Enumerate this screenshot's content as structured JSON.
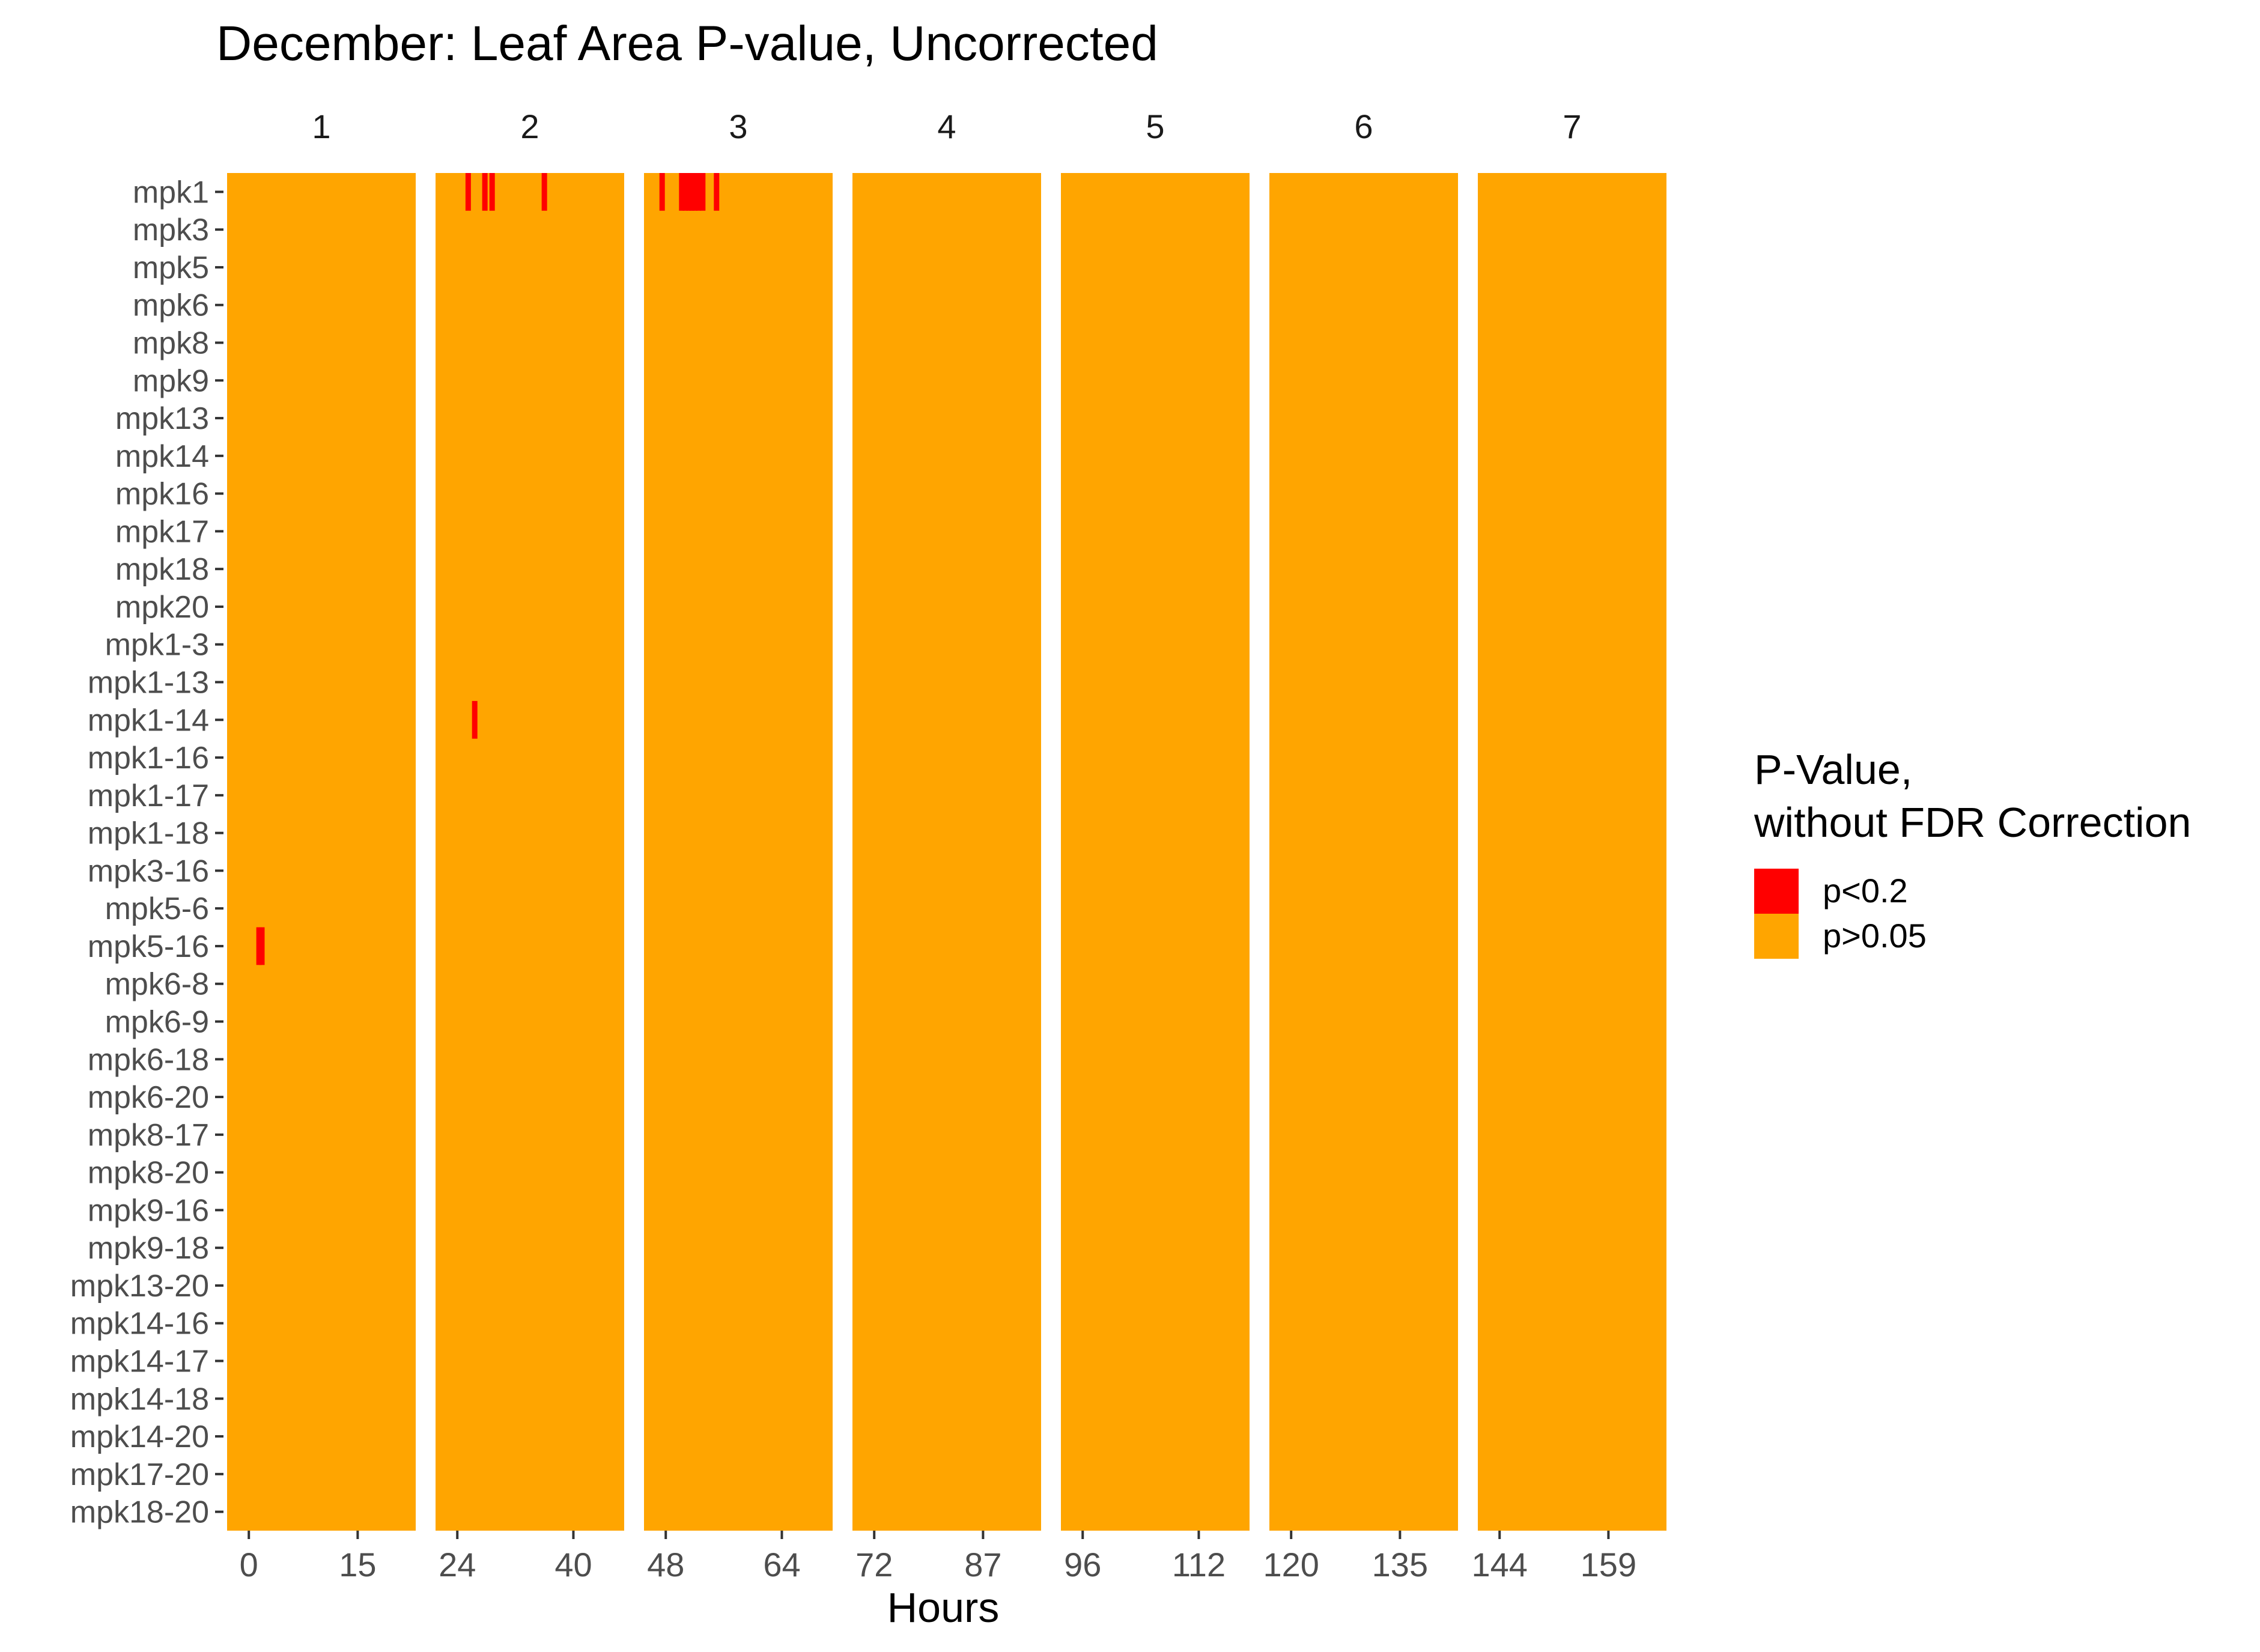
{
  "chart_data": {
    "type": "heatmap",
    "title": "December: Leaf Area P-value, Uncorrected",
    "xlabel": "Hours",
    "ylabel": "",
    "facets": [
      {
        "label": "1",
        "xlim": [
          -3,
          23
        ],
        "ticks": [
          0,
          15
        ]
      },
      {
        "label": "2",
        "xlim": [
          21,
          47
        ],
        "ticks": [
          24,
          40
        ]
      },
      {
        "label": "3",
        "xlim": [
          45,
          71
        ],
        "ticks": [
          48,
          64
        ]
      },
      {
        "label": "4",
        "xlim": [
          69,
          95
        ],
        "ticks": [
          72,
          87
        ]
      },
      {
        "label": "5",
        "xlim": [
          93,
          119
        ],
        "ticks": [
          96,
          112
        ]
      },
      {
        "label": "6",
        "xlim": [
          117,
          143
        ],
        "ticks": [
          120,
          135
        ]
      },
      {
        "label": "7",
        "xlim": [
          141,
          167
        ],
        "ticks": [
          144,
          159
        ]
      }
    ],
    "rows": [
      "mpk1",
      "mpk3",
      "mpk5",
      "mpk6",
      "mpk8",
      "mpk9",
      "mpk13",
      "mpk14",
      "mpk16",
      "mpk17",
      "mpk18",
      "mpk20",
      "mpk1-3",
      "mpk1-13",
      "mpk1-14",
      "mpk1-16",
      "mpk1-17",
      "mpk1-18",
      "mpk3-16",
      "mpk5-6",
      "mpk5-16",
      "mpk6-8",
      "mpk6-9",
      "mpk6-18",
      "mpk6-20",
      "mpk8-17",
      "mpk8-20",
      "mpk9-16",
      "mpk9-18",
      "mpk13-20",
      "mpk14-16",
      "mpk14-17",
      "mpk14-18",
      "mpk14-20",
      "mpk17-20",
      "mpk18-20"
    ],
    "default_category": "p>0.05",
    "significant": [
      {
        "row": "mpk1",
        "hour": 25.5
      },
      {
        "row": "mpk1",
        "hour": 27.8
      },
      {
        "row": "mpk1",
        "hour": 28.8
      },
      {
        "row": "mpk1",
        "hour": 36.0
      },
      {
        "row": "mpk1",
        "hour": 47.5
      },
      {
        "row": "mpk1",
        "hour": 50.2
      },
      {
        "row": "mpk1",
        "hour": 50.7
      },
      {
        "row": "mpk1",
        "hour": 51.2
      },
      {
        "row": "mpk1",
        "hour": 51.6
      },
      {
        "row": "mpk1",
        "hour": 52.0
      },
      {
        "row": "mpk1",
        "hour": 52.5
      },
      {
        "row": "mpk1",
        "hour": 53.1
      },
      {
        "row": "mpk1",
        "hour": 55.0
      },
      {
        "row": "mpk1-14",
        "hour": 26.4
      },
      {
        "row": "mpk5-16",
        "hour": 1.4
      },
      {
        "row": "mpk5-16",
        "hour": 1.8
      }
    ],
    "legend": {
      "title_lines": [
        "P-Value,",
        "without FDR Correction"
      ],
      "entries": [
        {
          "label": "p<0.2",
          "color": "#FF0000"
        },
        {
          "label": "p>0.05",
          "color": "#FFA500"
        }
      ],
      "position": "right"
    },
    "colors": {
      "high": "#FFA500",
      "low": "#FF0000"
    }
  }
}
